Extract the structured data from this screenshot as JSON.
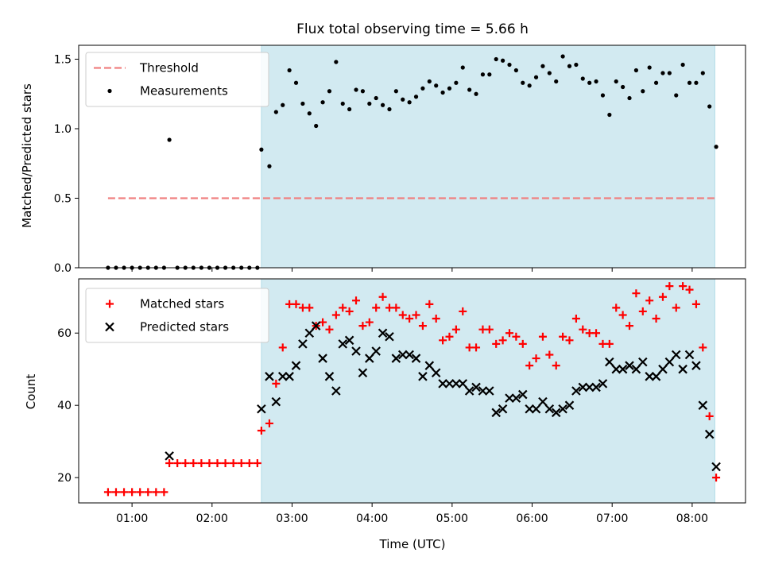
{
  "chart_data": [
    {
      "type": "scatter",
      "title": "Flux total observing time = 5.66 h",
      "xlabel": "",
      "ylabel": "Matched/Predicted stars",
      "ylim": [
        0.0,
        1.6
      ],
      "yticks": [
        "0.0",
        "0.5",
        "1.0",
        "1.5"
      ],
      "x_range": [
        "00:20",
        "08:40"
      ],
      "grid": false,
      "legend_position": "top-left",
      "shaded_interval": {
        "start": "02:37",
        "end": "08:17",
        "color": "#add8e6"
      },
      "threshold": {
        "name": "Threshold",
        "value": 0.5,
        "start": "00:42",
        "end": "08:17",
        "color": "#f08080"
      },
      "series": [
        {
          "name": "Measurements",
          "color": "#000000",
          "points": [
            [
              "00:42",
              0.0
            ],
            [
              "00:48",
              0.0
            ],
            [
              "00:54",
              0.0
            ],
            [
              "01:00",
              0.0
            ],
            [
              "01:06",
              0.0
            ],
            [
              "01:12",
              0.0
            ],
            [
              "01:18",
              0.0
            ],
            [
              "01:24",
              0.0
            ],
            [
              "01:28",
              0.92
            ],
            [
              "01:34",
              0.0
            ],
            [
              "01:40",
              0.0
            ],
            [
              "01:46",
              0.0
            ],
            [
              "01:52",
              0.0
            ],
            [
              "01:58",
              0.0
            ],
            [
              "02:04",
              0.0
            ],
            [
              "02:10",
              0.0
            ],
            [
              "02:16",
              0.0
            ],
            [
              "02:22",
              0.0
            ],
            [
              "02:28",
              0.0
            ],
            [
              "02:34",
              0.0
            ],
            [
              "02:37",
              0.85
            ],
            [
              "02:43",
              0.73
            ],
            [
              "02:48",
              1.12
            ],
            [
              "02:53",
              1.17
            ],
            [
              "02:58",
              1.42
            ],
            [
              "03:03",
              1.33
            ],
            [
              "03:08",
              1.18
            ],
            [
              "03:13",
              1.11
            ],
            [
              "03:18",
              1.02
            ],
            [
              "03:23",
              1.19
            ],
            [
              "03:28",
              1.27
            ],
            [
              "03:33",
              1.48
            ],
            [
              "03:38",
              1.18
            ],
            [
              "03:43",
              1.14
            ],
            [
              "03:48",
              1.28
            ],
            [
              "03:53",
              1.27
            ],
            [
              "03:58",
              1.18
            ],
            [
              "04:03",
              1.22
            ],
            [
              "04:08",
              1.17
            ],
            [
              "04:13",
              1.14
            ],
            [
              "04:18",
              1.27
            ],
            [
              "04:23",
              1.21
            ],
            [
              "04:28",
              1.19
            ],
            [
              "04:33",
              1.23
            ],
            [
              "04:38",
              1.29
            ],
            [
              "04:43",
              1.34
            ],
            [
              "04:48",
              1.31
            ],
            [
              "04:53",
              1.26
            ],
            [
              "04:58",
              1.29
            ],
            [
              "05:03",
              1.33
            ],
            [
              "05:08",
              1.44
            ],
            [
              "05:13",
              1.28
            ],
            [
              "05:18",
              1.25
            ],
            [
              "05:23",
              1.39
            ],
            [
              "05:28",
              1.39
            ],
            [
              "05:33",
              1.5
            ],
            [
              "05:38",
              1.49
            ],
            [
              "05:43",
              1.46
            ],
            [
              "05:48",
              1.42
            ],
            [
              "05:53",
              1.33
            ],
            [
              "05:58",
              1.31
            ],
            [
              "06:03",
              1.37
            ],
            [
              "06:08",
              1.45
            ],
            [
              "06:13",
              1.4
            ],
            [
              "06:18",
              1.34
            ],
            [
              "06:23",
              1.52
            ],
            [
              "06:28",
              1.45
            ],
            [
              "06:33",
              1.46
            ],
            [
              "06:38",
              1.36
            ],
            [
              "06:43",
              1.33
            ],
            [
              "06:48",
              1.34
            ],
            [
              "06:53",
              1.24
            ],
            [
              "06:58",
              1.1
            ],
            [
              "07:03",
              1.34
            ],
            [
              "07:08",
              1.3
            ],
            [
              "07:13",
              1.22
            ],
            [
              "07:18",
              1.42
            ],
            [
              "07:23",
              1.27
            ],
            [
              "07:28",
              1.44
            ],
            [
              "07:33",
              1.33
            ],
            [
              "07:38",
              1.4
            ],
            [
              "07:43",
              1.4
            ],
            [
              "07:48",
              1.24
            ],
            [
              "07:53",
              1.46
            ],
            [
              "07:58",
              1.33
            ],
            [
              "08:03",
              1.33
            ],
            [
              "08:08",
              1.4
            ],
            [
              "08:13",
              1.16
            ],
            [
              "08:18",
              0.87
            ]
          ]
        }
      ]
    },
    {
      "type": "scatter",
      "title": "",
      "xlabel": "Time (UTC)",
      "ylabel": "Count",
      "ylim": [
        13,
        75
      ],
      "yticks": [
        "20",
        "40",
        "60"
      ],
      "x_range": [
        "00:20",
        "08:40"
      ],
      "xticks": [
        "01:00",
        "02:00",
        "03:00",
        "04:00",
        "05:00",
        "06:00",
        "07:00",
        "08:00"
      ],
      "grid": false,
      "legend_position": "top-left",
      "shaded_interval": {
        "start": "02:37",
        "end": "08:17",
        "color": "#add8e6"
      },
      "series": [
        {
          "name": "Matched stars",
          "marker": "plus",
          "color": "#ff0000",
          "points": [
            [
              "00:42",
              16
            ],
            [
              "00:48",
              16
            ],
            [
              "00:54",
              16
            ],
            [
              "01:00",
              16
            ],
            [
              "01:06",
              16
            ],
            [
              "01:12",
              16
            ],
            [
              "01:18",
              16
            ],
            [
              "01:24",
              16
            ],
            [
              "01:28",
              24
            ],
            [
              "01:34",
              24
            ],
            [
              "01:40",
              24
            ],
            [
              "01:46",
              24
            ],
            [
              "01:52",
              24
            ],
            [
              "01:58",
              24
            ],
            [
              "02:04",
              24
            ],
            [
              "02:10",
              24
            ],
            [
              "02:16",
              24
            ],
            [
              "02:22",
              24
            ],
            [
              "02:28",
              24
            ],
            [
              "02:34",
              24
            ],
            [
              "02:37",
              33
            ],
            [
              "02:43",
              35
            ],
            [
              "02:48",
              46
            ],
            [
              "02:53",
              56
            ],
            [
              "02:58",
              68
            ],
            [
              "03:03",
              68
            ],
            [
              "03:08",
              67
            ],
            [
              "03:13",
              67
            ],
            [
              "03:18",
              62
            ],
            [
              "03:23",
              63
            ],
            [
              "03:28",
              61
            ],
            [
              "03:33",
              65
            ],
            [
              "03:38",
              67
            ],
            [
              "03:43",
              66
            ],
            [
              "03:48",
              69
            ],
            [
              "03:53",
              62
            ],
            [
              "03:58",
              63
            ],
            [
              "04:03",
              67
            ],
            [
              "04:08",
              70
            ],
            [
              "04:13",
              67
            ],
            [
              "04:18",
              67
            ],
            [
              "04:23",
              65
            ],
            [
              "04:28",
              64
            ],
            [
              "04:33",
              65
            ],
            [
              "04:38",
              62
            ],
            [
              "04:43",
              68
            ],
            [
              "04:48",
              64
            ],
            [
              "04:53",
              58
            ],
            [
              "04:58",
              59
            ],
            [
              "05:03",
              61
            ],
            [
              "05:08",
              66
            ],
            [
              "05:13",
              56
            ],
            [
              "05:18",
              56
            ],
            [
              "05:23",
              61
            ],
            [
              "05:28",
              61
            ],
            [
              "05:33",
              57
            ],
            [
              "05:38",
              58
            ],
            [
              "05:43",
              60
            ],
            [
              "05:48",
              59
            ],
            [
              "05:53",
              57
            ],
            [
              "05:58",
              51
            ],
            [
              "06:03",
              53
            ],
            [
              "06:08",
              59
            ],
            [
              "06:13",
              54
            ],
            [
              "06:18",
              51
            ],
            [
              "06:23",
              59
            ],
            [
              "06:28",
              58
            ],
            [
              "06:33",
              64
            ],
            [
              "06:38",
              61
            ],
            [
              "06:43",
              60
            ],
            [
              "06:48",
              60
            ],
            [
              "06:53",
              57
            ],
            [
              "06:58",
              57
            ],
            [
              "07:03",
              67
            ],
            [
              "07:08",
              65
            ],
            [
              "07:13",
              62
            ],
            [
              "07:18",
              71
            ],
            [
              "07:23",
              66
            ],
            [
              "07:28",
              69
            ],
            [
              "07:33",
              64
            ],
            [
              "07:38",
              70
            ],
            [
              "07:43",
              73
            ],
            [
              "07:48",
              67
            ],
            [
              "07:53",
              73
            ],
            [
              "07:58",
              72
            ],
            [
              "08:03",
              68
            ],
            [
              "08:08",
              56
            ],
            [
              "08:13",
              37
            ],
            [
              "08:18",
              20
            ]
          ]
        },
        {
          "name": "Predicted stars",
          "marker": "x",
          "color": "#000000",
          "points": [
            [
              "01:28",
              26
            ],
            [
              "02:37",
              39
            ],
            [
              "02:43",
              48
            ],
            [
              "02:48",
              41
            ],
            [
              "02:53",
              48
            ],
            [
              "02:58",
              48
            ],
            [
              "03:03",
              51
            ],
            [
              "03:08",
              57
            ],
            [
              "03:13",
              60
            ],
            [
              "03:18",
              62
            ],
            [
              "03:23",
              53
            ],
            [
              "03:28",
              48
            ],
            [
              "03:33",
              44
            ],
            [
              "03:38",
              57
            ],
            [
              "03:43",
              58
            ],
            [
              "03:48",
              55
            ],
            [
              "03:53",
              49
            ],
            [
              "03:58",
              53
            ],
            [
              "04:03",
              55
            ],
            [
              "04:08",
              60
            ],
            [
              "04:13",
              59
            ],
            [
              "04:18",
              53
            ],
            [
              "04:23",
              54
            ],
            [
              "04:28",
              54
            ],
            [
              "04:33",
              53
            ],
            [
              "04:38",
              48
            ],
            [
              "04:43",
              51
            ],
            [
              "04:48",
              49
            ],
            [
              "04:53",
              46
            ],
            [
              "04:58",
              46
            ],
            [
              "05:03",
              46
            ],
            [
              "05:08",
              46
            ],
            [
              "05:13",
              44
            ],
            [
              "05:18",
              45
            ],
            [
              "05:23",
              44
            ],
            [
              "05:28",
              44
            ],
            [
              "05:33",
              38
            ],
            [
              "05:38",
              39
            ],
            [
              "05:43",
              42
            ],
            [
              "05:48",
              42
            ],
            [
              "05:53",
              43
            ],
            [
              "05:58",
              39
            ],
            [
              "06:03",
              39
            ],
            [
              "06:08",
              41
            ],
            [
              "06:13",
              39
            ],
            [
              "06:18",
              38
            ],
            [
              "06:23",
              39
            ],
            [
              "06:28",
              40
            ],
            [
              "06:33",
              44
            ],
            [
              "06:38",
              45
            ],
            [
              "06:43",
              45
            ],
            [
              "06:48",
              45
            ],
            [
              "06:53",
              46
            ],
            [
              "06:58",
              52
            ],
            [
              "07:03",
              50
            ],
            [
              "07:08",
              50
            ],
            [
              "07:13",
              51
            ],
            [
              "07:18",
              50
            ],
            [
              "07:23",
              52
            ],
            [
              "07:28",
              48
            ],
            [
              "07:33",
              48
            ],
            [
              "07:38",
              50
            ],
            [
              "07:43",
              52
            ],
            [
              "07:48",
              54
            ],
            [
              "07:53",
              50
            ],
            [
              "07:58",
              54
            ],
            [
              "08:03",
              51
            ],
            [
              "08:08",
              40
            ],
            [
              "08:13",
              32
            ],
            [
              "08:18",
              23
            ]
          ]
        }
      ]
    }
  ]
}
